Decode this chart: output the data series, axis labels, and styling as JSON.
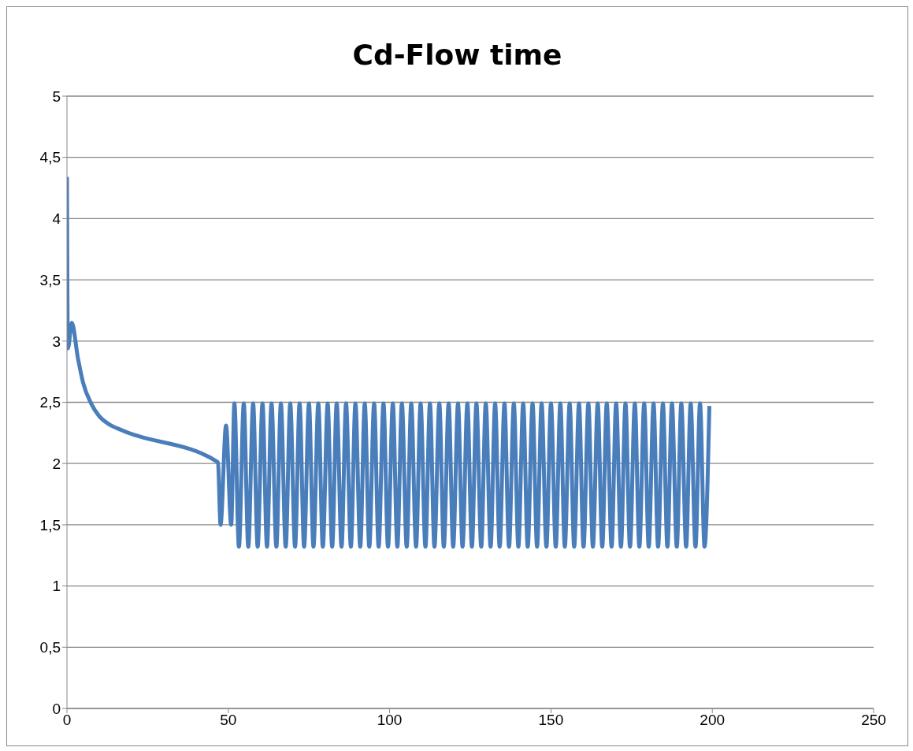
{
  "chart_data": {
    "type": "line",
    "title": "Cd-Flow time",
    "color": "#4a7ebb",
    "grid": "y",
    "line_style": "solid",
    "marker": "none",
    "xlim": [
      0,
      250
    ],
    "xticks": [
      0,
      50,
      100,
      150,
      200,
      250
    ],
    "ylim": [
      0,
      5
    ],
    "yticks": [
      0,
      {
        "value": 0.5,
        "label": "0,5"
      },
      1,
      {
        "value": 1.5,
        "label": "1,5"
      },
      2,
      {
        "value": 2.5,
        "label": "2,5"
      },
      3,
      {
        "value": 3.5,
        "label": "3,5"
      },
      4,
      {
        "value": 4.5,
        "label": "4,5"
      },
      5
    ],
    "x": [
      0,
      0.3,
      1.5,
      3.4,
      5.0,
      7.5,
      9.9,
      13.1,
      17.2,
      46.8,
      47.6,
      49.3,
      50.9,
      51.9,
      53.3,
      54.8,
      56.2,
      57.7,
      59.1,
      60.6,
      62.0,
      63.4,
      64.9,
      66.3,
      67.8,
      69.2,
      70.7,
      72.1,
      73.5,
      75.0,
      76.4,
      77.9,
      79.3,
      80.8,
      82.2,
      83.6,
      85.1,
      86.5,
      88.0,
      89.4,
      90.9,
      92.3,
      93.7,
      95.2,
      96.6,
      98.1,
      99.5,
      101.0,
      102.4,
      103.8,
      105.3,
      106.7,
      108.2,
      109.6,
      111.1,
      112.5,
      113.9,
      115.4,
      116.8,
      118.3,
      119.7,
      121.2,
      122.6,
      124.1,
      125.5,
      126.9,
      128.4,
      129.8,
      131.3,
      132.7,
      134.1,
      135.6,
      137.0,
      138.5,
      139.9,
      141.4,
      142.8,
      144.3,
      145.7,
      147.1,
      148.6,
      150.0,
      151.5,
      152.9,
      154.3,
      155.8,
      157.2,
      158.7,
      160.1,
      161.6,
      163.0,
      164.5,
      165.9,
      167.3,
      168.8,
      170.2,
      171.7,
      173.1,
      174.5,
      176.0,
      177.4,
      178.9,
      180.3,
      181.8,
      183.2,
      184.7,
      186.1,
      187.5,
      189.0,
      190.4,
      191.9,
      193.3,
      194.8,
      196.2,
      197.6,
      199.1
    ],
    "values": [
      4.34,
      2.94,
      3.15,
      2.86,
      2.66,
      2.49,
      2.39,
      2.32,
      2.27,
      2.01,
      1.5,
      2.31,
      1.5,
      2.49,
      1.32,
      2.49,
      1.32,
      2.49,
      1.32,
      2.49,
      1.32,
      2.49,
      1.32,
      2.49,
      1.32,
      2.49,
      1.32,
      2.49,
      1.32,
      2.49,
      1.32,
      2.49,
      1.32,
      2.49,
      1.32,
      2.49,
      1.32,
      2.49,
      1.32,
      2.49,
      1.32,
      2.49,
      1.32,
      2.49,
      1.32,
      2.49,
      1.32,
      2.49,
      1.32,
      2.49,
      1.32,
      2.49,
      1.32,
      2.49,
      1.32,
      2.49,
      1.32,
      2.49,
      1.32,
      2.49,
      1.32,
      2.49,
      1.32,
      2.49,
      1.32,
      2.49,
      1.32,
      2.49,
      1.32,
      2.49,
      1.32,
      2.49,
      1.32,
      2.49,
      1.32,
      2.49,
      1.32,
      2.49,
      1.32,
      2.49,
      1.32,
      2.49,
      1.32,
      2.49,
      1.32,
      2.49,
      1.32,
      2.49,
      1.32,
      2.49,
      1.32,
      2.49,
      1.32,
      2.49,
      1.32,
      2.49,
      1.32,
      2.49,
      1.32,
      2.49,
      1.32,
      2.49,
      1.32,
      2.49,
      1.32,
      2.49,
      1.32,
      2.49,
      1.32,
      2.49,
      1.32,
      2.49,
      1.32,
      2.49,
      1.32,
      2.47
    ]
  }
}
